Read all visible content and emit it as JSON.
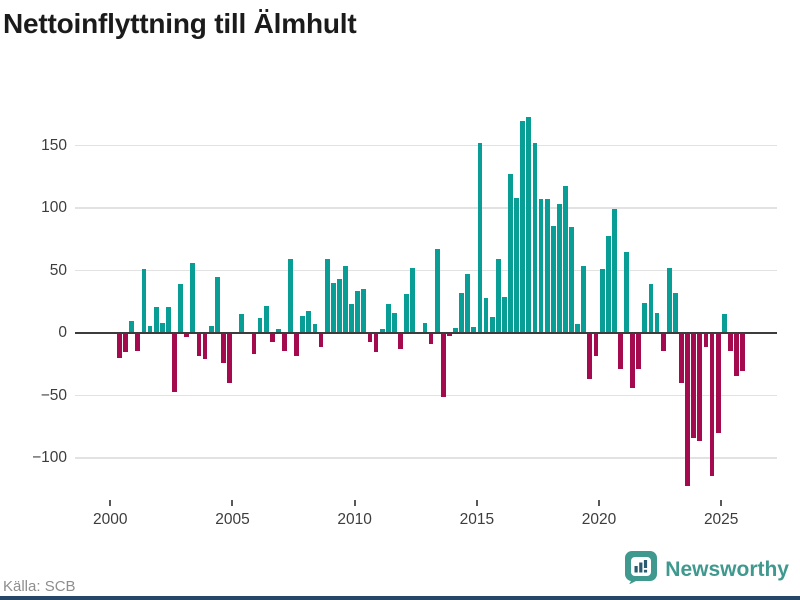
{
  "title": "Nettoinflyttning till Älmhult",
  "source": "Källa: SCB",
  "brand": {
    "name": "Newsworthy",
    "icon": "bar-chart-speech-bubble-icon"
  },
  "colors": {
    "positive_bar": "#089e96",
    "negative_bar": "#a40a4e",
    "grid": "#e2e2e2",
    "zero_line": "#3c3c3c",
    "axis_text": "#3d3d3d",
    "source_text": "#8e8e8e",
    "brand_teal": "#3f998e",
    "bottom_strip": "#27476a"
  },
  "chart_data": {
    "type": "bar",
    "title": "Nettoinflyttning till Älmhult",
    "xlabel": "",
    "ylabel": "",
    "period_start": "2000 Q1",
    "period_end": "2025 Q4",
    "frequency": "quarterly",
    "ylim": [
      -130,
      185
    ],
    "grid": "horizontal",
    "legend": "none",
    "y_ticks": [
      {
        "label": "150",
        "value": 150
      },
      {
        "label": "100",
        "value": 100
      },
      {
        "label": "50",
        "value": 50
      },
      {
        "label": "0",
        "value": 0
      },
      {
        "label": "−50",
        "value": -50
      },
      {
        "label": "−100",
        "value": -100
      }
    ],
    "x_ticks": [
      {
        "label": "2000"
      },
      {
        "label": "2005"
      },
      {
        "label": "2010"
      },
      {
        "label": "2015"
      },
      {
        "label": "2020"
      },
      {
        "label": "2025"
      }
    ],
    "quarters": [
      "2000Q1",
      "2000Q2",
      "2000Q3",
      "2000Q4",
      "2001Q1",
      "2001Q2",
      "2001Q3",
      "2001Q4",
      "2002Q1",
      "2002Q2",
      "2002Q3",
      "2002Q4",
      "2003Q1",
      "2003Q2",
      "2003Q3",
      "2003Q4",
      "2004Q1",
      "2004Q2",
      "2004Q3",
      "2004Q4",
      "2005Q1",
      "2005Q2",
      "2005Q3",
      "2005Q4",
      "2006Q1",
      "2006Q2",
      "2006Q3",
      "2006Q4",
      "2007Q1",
      "2007Q2",
      "2007Q3",
      "2007Q4",
      "2008Q1",
      "2008Q2",
      "2008Q3",
      "2008Q4",
      "2009Q1",
      "2009Q2",
      "2009Q3",
      "2009Q4",
      "2010Q1",
      "2010Q2",
      "2010Q3",
      "2010Q4",
      "2011Q1",
      "2011Q2",
      "2011Q3",
      "2011Q4",
      "2012Q1",
      "2012Q2",
      "2012Q3",
      "2012Q4",
      "2013Q1",
      "2013Q2",
      "2013Q3",
      "2013Q4",
      "2014Q1",
      "2014Q2",
      "2014Q3",
      "2014Q4",
      "2015Q1",
      "2015Q2",
      "2015Q3",
      "2015Q4",
      "2016Q1",
      "2016Q2",
      "2016Q3",
      "2016Q4",
      "2017Q1",
      "2017Q2",
      "2017Q3",
      "2017Q4",
      "2018Q1",
      "2018Q2",
      "2018Q3",
      "2018Q4",
      "2019Q1",
      "2019Q2",
      "2019Q3",
      "2019Q4",
      "2020Q1",
      "2020Q2",
      "2020Q3",
      "2020Q4",
      "2021Q1",
      "2021Q2",
      "2021Q3",
      "2021Q4",
      "2022Q1",
      "2022Q2",
      "2022Q3",
      "2022Q4",
      "2023Q1",
      "2023Q2",
      "2023Q3",
      "2023Q4",
      "2024Q1",
      "2024Q2",
      "2024Q3",
      "2024Q4",
      "2025Q1",
      "2025Q2",
      "2025Q3",
      "2025Q4"
    ],
    "values": [
      0,
      -20,
      -15,
      10,
      -14,
      51,
      6,
      21,
      8,
      21,
      -47,
      39,
      -3,
      56,
      -18,
      -21,
      6,
      45,
      -24,
      -40,
      0,
      15,
      0,
      -17,
      12,
      22,
      -7,
      3,
      -14,
      59,
      -18,
      14,
      18,
      7,
      -11,
      59,
      40,
      43,
      54,
      23,
      34,
      35,
      -7,
      -15,
      3,
      23,
      16,
      -13,
      31,
      52,
      0,
      8,
      -9,
      67,
      -51,
      -2,
      4,
      32,
      47,
      5,
      152,
      28,
      13,
      59,
      29,
      127,
      108,
      170,
      173,
      152,
      107,
      107,
      86,
      103,
      118,
      85,
      7,
      54,
      -37,
      -18,
      51,
      78,
      99,
      -29,
      65,
      -44,
      -29,
      24,
      39,
      16,
      -14,
      52,
      32,
      -40,
      -122,
      -84,
      -86,
      -11,
      -114,
      -80,
      15,
      -14,
      -34,
      -30
    ]
  }
}
